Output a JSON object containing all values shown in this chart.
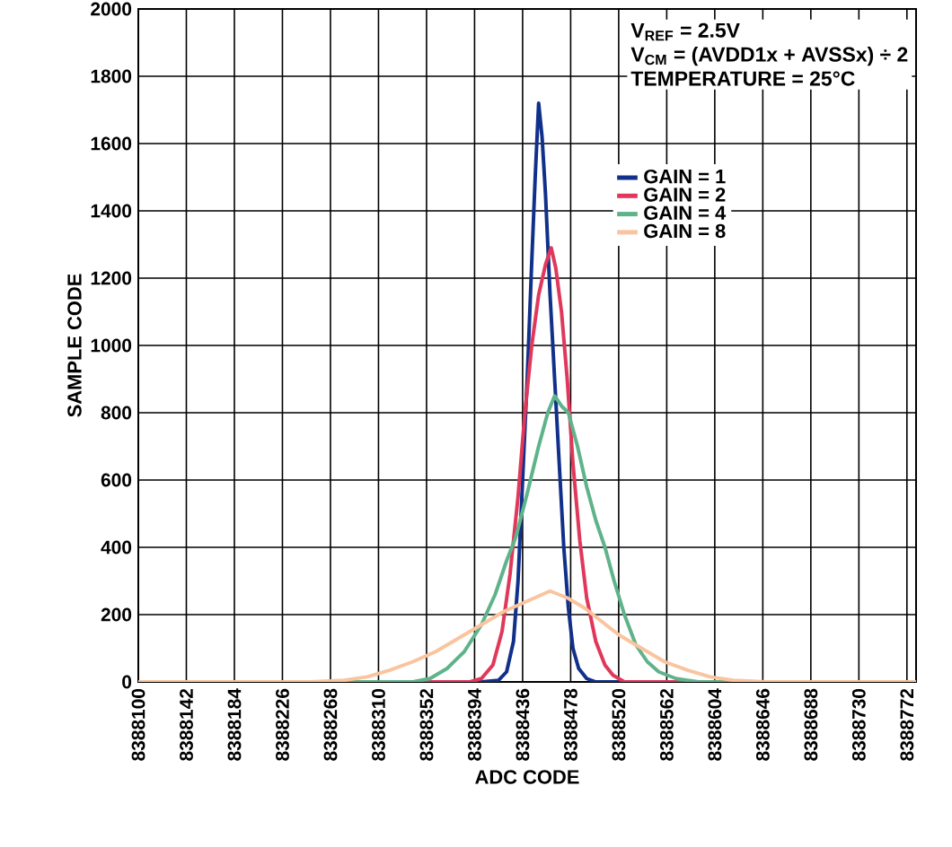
{
  "chart_data": {
    "type": "line",
    "xlabel": "ADC CODE",
    "ylabel": "SAMPLE CODE",
    "annotations": [
      "V$_{REF}$ = 2.5V",
      "V$_{CM}$ = (AVDD1x + AVSSx) ÷ 2",
      "TEMPERATURE = 25°C"
    ],
    "xlim": [
      8388100,
      8388780
    ],
    "ylim": [
      0,
      2000
    ],
    "xticks": [
      8388100,
      8388142,
      8388184,
      8388226,
      8388268,
      8388310,
      8388352,
      8388394,
      8388436,
      8388478,
      8388520,
      8388562,
      8388604,
      8388646,
      8388688,
      8388730,
      8388772
    ],
    "yticks": [
      0,
      200,
      400,
      600,
      800,
      1000,
      1200,
      1400,
      1600,
      1800,
      2000
    ],
    "grid": true,
    "legend": "top right",
    "marker": "none",
    "line_style": "solid",
    "series": [
      {
        "name": "GAIN = 1",
        "color": "#10308a",
        "x": [
          8388100,
          8388400,
          8388415,
          8388422,
          8388428,
          8388432,
          8388436,
          8388440,
          8388444,
          8388447,
          8388450,
          8388453,
          8388456,
          8388460,
          8388464,
          8388468,
          8388472,
          8388476,
          8388480,
          8388485,
          8388492,
          8388500,
          8388780
        ],
        "values": [
          0,
          0,
          5,
          30,
          120,
          300,
          600,
          900,
          1250,
          1500,
          1720,
          1620,
          1450,
          1150,
          900,
          650,
          400,
          220,
          100,
          40,
          10,
          0,
          0
        ]
      },
      {
        "name": "GAIN = 2",
        "color": "#e0385a",
        "x": [
          8388100,
          8388390,
          8388400,
          8388410,
          8388418,
          8388425,
          8388432,
          8388438,
          8388444,
          8388450,
          8388456,
          8388461,
          8388465,
          8388470,
          8388475,
          8388480,
          8388486,
          8388492,
          8388500,
          8388508,
          8388515,
          8388525,
          8388780
        ],
        "values": [
          0,
          0,
          10,
          50,
          150,
          320,
          550,
          800,
          1000,
          1150,
          1240,
          1290,
          1230,
          1100,
          900,
          650,
          420,
          250,
          120,
          50,
          20,
          0,
          0
        ]
      },
      {
        "name": "GAIN = 4",
        "color": "#5fb38a",
        "x": [
          8388100,
          8388340,
          8388355,
          8388370,
          8388385,
          8388400,
          8388412,
          8388422,
          8388430,
          8388440,
          8388450,
          8388458,
          8388464,
          8388470,
          8388476,
          8388484,
          8388492,
          8388500,
          8388508,
          8388516,
          8388525,
          8388535,
          8388545,
          8388555,
          8388570,
          8388590,
          8388780
        ],
        "values": [
          0,
          0,
          10,
          40,
          90,
          170,
          260,
          360,
          430,
          560,
          700,
          800,
          850,
          820,
          800,
          700,
          580,
          480,
          400,
          300,
          200,
          110,
          60,
          30,
          10,
          0,
          0
        ]
      },
      {
        "name": "GAIN = 8",
        "color": "#f9c49e",
        "x": [
          8388100,
          8388250,
          8388280,
          8388300,
          8388320,
          8388340,
          8388360,
          8388380,
          8388400,
          8388420,
          8388440,
          8388460,
          8388475,
          8388490,
          8388505,
          8388520,
          8388540,
          8388560,
          8388580,
          8388600,
          8388620,
          8388650,
          8388780
        ],
        "values": [
          0,
          0,
          5,
          15,
          35,
          60,
          90,
          130,
          170,
          210,
          240,
          270,
          250,
          220,
          180,
          140,
          100,
          60,
          35,
          15,
          5,
          0,
          0
        ]
      }
    ]
  }
}
